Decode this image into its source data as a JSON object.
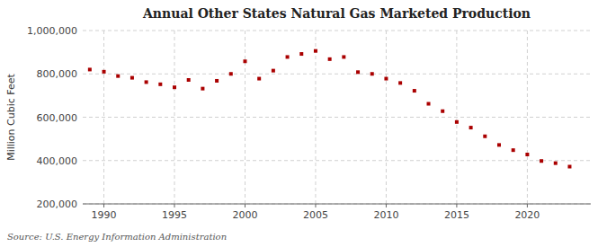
{
  "chart_data": {
    "type": "scatter",
    "title": "Annual Other States Natural Gas Marketed Production",
    "ylabel": "Million Cubic Feet",
    "source": "Source: U.S. Energy Information Administration",
    "x": [
      1989,
      1990,
      1991,
      1992,
      1993,
      1994,
      1995,
      1996,
      1997,
      1998,
      1999,
      2000,
      2001,
      2002,
      2003,
      2004,
      2005,
      2006,
      2007,
      2008,
      2009,
      2010,
      2011,
      2012,
      2013,
      2014,
      2015,
      2016,
      2017,
      2018,
      2019,
      2020,
      2021,
      2022,
      2023
    ],
    "values": [
      820000,
      810000,
      790000,
      782000,
      762000,
      752000,
      738000,
      772000,
      732000,
      768000,
      800000,
      858000,
      778000,
      815000,
      878000,
      892000,
      906000,
      868000,
      878000,
      808000,
      800000,
      778000,
      758000,
      722000,
      662000,
      628000,
      578000,
      552000,
      512000,
      472000,
      448000,
      428000,
      398000,
      388000,
      372000
    ],
    "color": "#aa0000",
    "marker": "square",
    "grid": true,
    "xlim": [
      1988.5,
      2024.5
    ],
    "xticks": [
      1990,
      1995,
      2000,
      2005,
      2010,
      2015,
      2020
    ],
    "ylim": [
      200000,
      1000000
    ],
    "yticks": [
      {
        "value": 200000,
        "label": "200,000"
      },
      {
        "value": 400000,
        "label": "400,000"
      },
      {
        "value": 600000,
        "label": "600,000"
      },
      {
        "value": 800000,
        "label": "800,000"
      },
      {
        "value": 1000000,
        "label": "1,000,000"
      }
    ]
  }
}
